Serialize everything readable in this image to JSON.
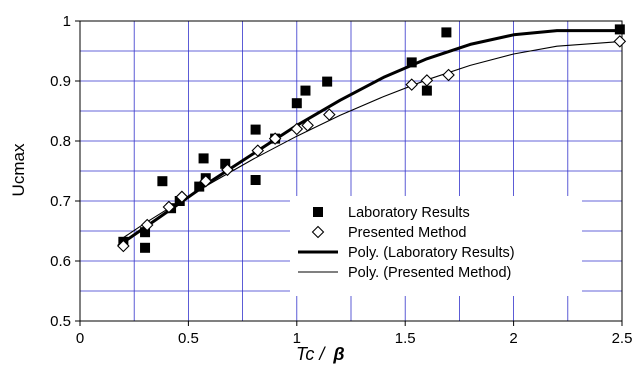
{
  "chart_data": {
    "type": "scatter",
    "title": "",
    "xlabel": "Tc /",
    "xlabel_symbol": "β",
    "ylabel": "Ucmax",
    "xlim": [
      0,
      2.5
    ],
    "ylim": [
      0.5,
      1.0
    ],
    "x_ticks": [
      0,
      0.5,
      1,
      1.5,
      2,
      2.5
    ],
    "x_tick_labels": [
      "0",
      "0.5",
      "1",
      "1.5",
      "2",
      "2.5"
    ],
    "y_ticks": [
      0.5,
      0.6,
      0.7,
      0.8,
      0.9,
      1.0
    ],
    "y_tick_labels": [
      "0.5",
      "0.6",
      "0.7",
      "0.8",
      "0.9",
      "1"
    ],
    "grid": true,
    "grid_color": "#3333cc",
    "legend_placement": "bottom-right",
    "series": [
      {
        "name": "Laboratory Results",
        "kind": "points",
        "marker": "filled-square",
        "color": "#000000",
        "points": [
          [
            0.2,
            0.632
          ],
          [
            0.3,
            0.648
          ],
          [
            0.3,
            0.622
          ],
          [
            0.38,
            0.733
          ],
          [
            0.42,
            0.688
          ],
          [
            0.46,
            0.7
          ],
          [
            0.55,
            0.724
          ],
          [
            0.57,
            0.771
          ],
          [
            0.58,
            0.738
          ],
          [
            0.67,
            0.762
          ],
          [
            0.81,
            0.819
          ],
          [
            0.81,
            0.735
          ],
          [
            0.9,
            0.804
          ],
          [
            1.0,
            0.863
          ],
          [
            1.04,
            0.884
          ],
          [
            1.14,
            0.899
          ],
          [
            1.53,
            0.931
          ],
          [
            1.6,
            0.884
          ],
          [
            1.69,
            0.981
          ],
          [
            2.49,
            0.986
          ]
        ]
      },
      {
        "name": "Presented Method",
        "kind": "points",
        "marker": "open-diamond",
        "color": "#000000",
        "points": [
          [
            0.2,
            0.625
          ],
          [
            0.31,
            0.66
          ],
          [
            0.41,
            0.69
          ],
          [
            0.47,
            0.707
          ],
          [
            0.58,
            0.733
          ],
          [
            0.68,
            0.752
          ],
          [
            0.82,
            0.784
          ],
          [
            0.9,
            0.804
          ],
          [
            1.0,
            0.82
          ],
          [
            1.05,
            0.826
          ],
          [
            1.15,
            0.844
          ],
          [
            1.53,
            0.894
          ],
          [
            1.6,
            0.901
          ],
          [
            1.7,
            0.91
          ],
          [
            2.49,
            0.966
          ]
        ]
      },
      {
        "name": "Poly. (Laboratory Results)",
        "kind": "trendline",
        "line_style": "thick",
        "color": "#000000",
        "points": [
          [
            0.18,
            0.626
          ],
          [
            0.3,
            0.656
          ],
          [
            0.45,
            0.694
          ],
          [
            0.6,
            0.732
          ],
          [
            0.8,
            0.779
          ],
          [
            1.0,
            0.826
          ],
          [
            1.2,
            0.868
          ],
          [
            1.4,
            0.906
          ],
          [
            1.6,
            0.937
          ],
          [
            1.8,
            0.961
          ],
          [
            2.0,
            0.977
          ],
          [
            2.2,
            0.984
          ],
          [
            2.5,
            0.984
          ]
        ]
      },
      {
        "name": "Poly. (Presented Method)",
        "kind": "trendline",
        "line_style": "thin",
        "color": "#000000",
        "points": [
          [
            0.18,
            0.634
          ],
          [
            0.3,
            0.663
          ],
          [
            0.45,
            0.697
          ],
          [
            0.6,
            0.729
          ],
          [
            0.8,
            0.77
          ],
          [
            1.0,
            0.808
          ],
          [
            1.2,
            0.843
          ],
          [
            1.4,
            0.874
          ],
          [
            1.6,
            0.902
          ],
          [
            1.8,
            0.926
          ],
          [
            2.0,
            0.945
          ],
          [
            2.2,
            0.958
          ],
          [
            2.5,
            0.966
          ]
        ]
      }
    ]
  }
}
